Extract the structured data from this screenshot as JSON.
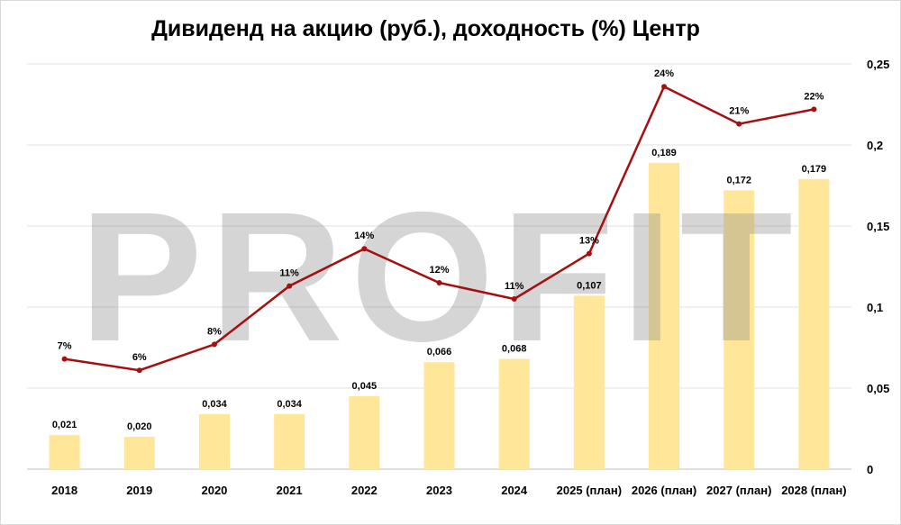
{
  "chart_data": {
    "type": "bar+line",
    "title": "Дивиденд на акцию (руб.), доходность (%) Центр",
    "categories": [
      "2018",
      "2019",
      "2020",
      "2021",
      "2022",
      "2023",
      "2024",
      "2025 (план)",
      "2026 (план)",
      "2027 (план)",
      "2028 (план)"
    ],
    "series": [
      {
        "type": "bar",
        "values": [
          0.021,
          0.02,
          0.034,
          0.034,
          0.045,
          0.066,
          0.068,
          0.107,
          0.189,
          0.172,
          0.179
        ],
        "labels": [
          "0,021",
          "0,020",
          "0,034",
          "0,034",
          "0,045",
          "0,066",
          "0,068",
          "0,107",
          "0,189",
          "0,172",
          "0,179"
        ],
        "color": "#ffe699"
      },
      {
        "type": "line",
        "values": [
          0.068,
          0.061,
          0.077,
          0.113,
          0.136,
          0.115,
          0.105,
          0.133,
          0.236,
          0.213,
          0.222
        ],
        "labels": [
          "7%",
          "6%",
          "8%",
          "11%",
          "14%",
          "12%",
          "11%",
          "13%",
          "24%",
          "21%",
          "22%"
        ],
        "color": "#a50f0f"
      }
    ],
    "y_axis": {
      "position": "right",
      "ylim": [
        0,
        0.25
      ],
      "ticks": [
        0,
        0.05,
        0.1,
        0.15,
        0.2,
        0.25
      ],
      "tick_labels": [
        "0",
        "0,05",
        "0,1",
        "0,15",
        "0,2",
        "0,25"
      ]
    },
    "grid": true,
    "watermark": "PROFIT"
  }
}
